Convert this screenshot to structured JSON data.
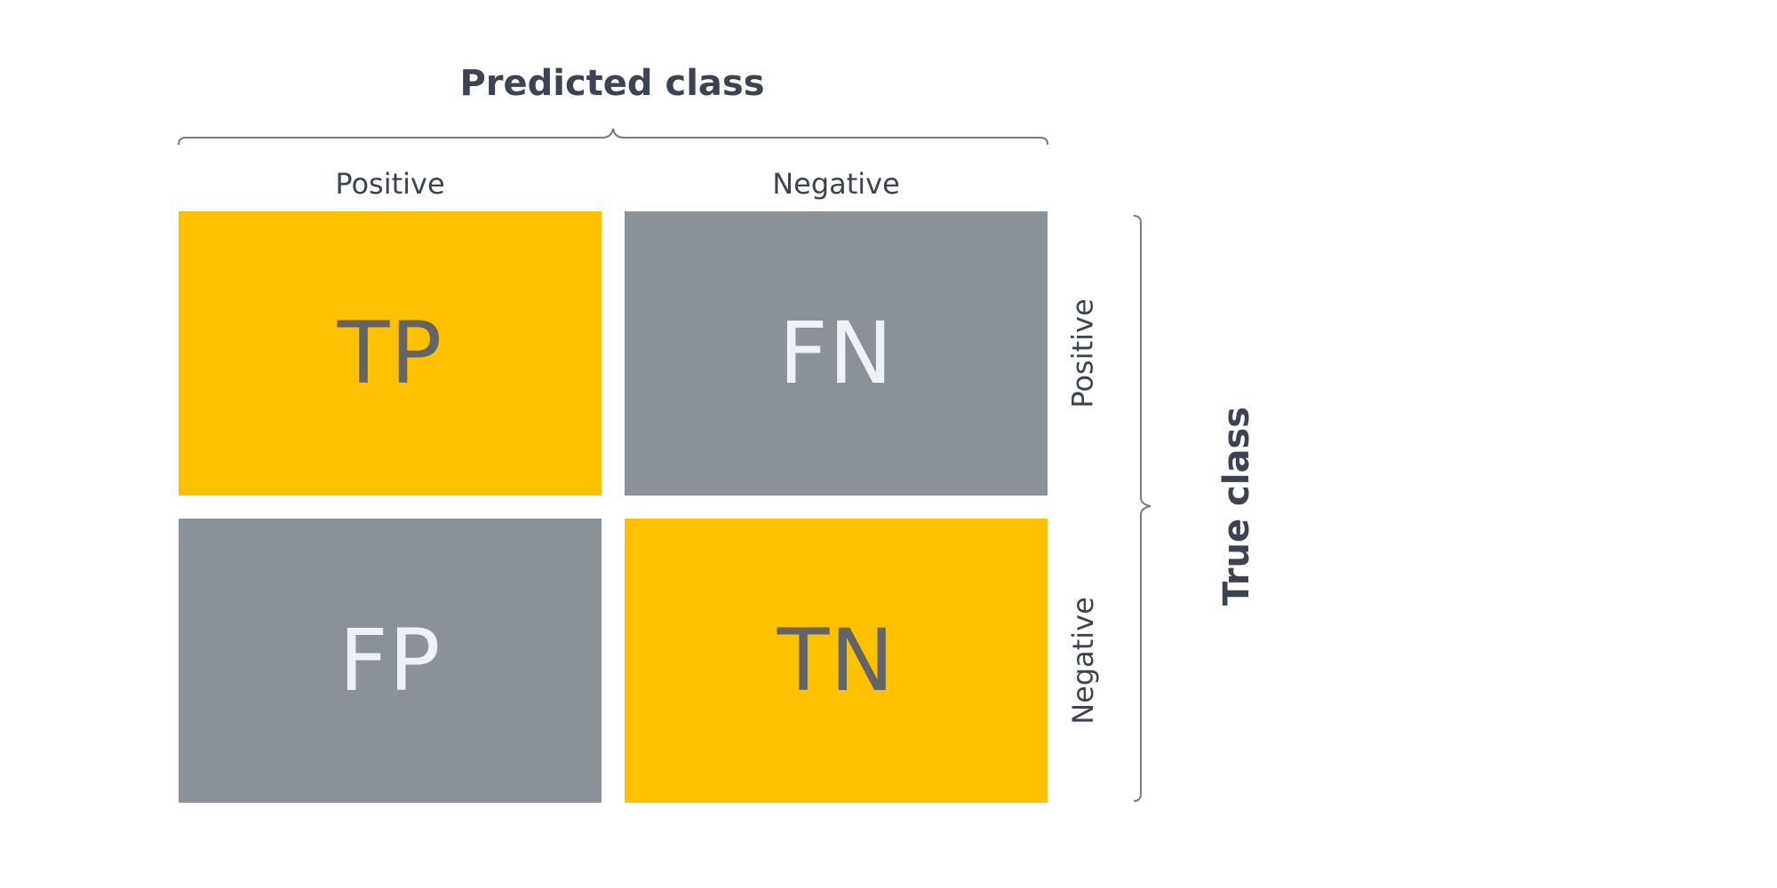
{
  "predicted_title": "Predicted class",
  "true_title": "True class",
  "columns": [
    "Positive",
    "Negative"
  ],
  "rows": [
    "Positive",
    "Negative"
  ],
  "cells": [
    [
      "TP",
      "FN"
    ],
    [
      "FP",
      "TN"
    ]
  ],
  "colors": {
    "text": "#3a4452",
    "yellow": "#fec101",
    "gray": "#8a9199",
    "dark_letters": "#626467",
    "light_letters": "#eef1f6",
    "brace": "#747c86"
  }
}
